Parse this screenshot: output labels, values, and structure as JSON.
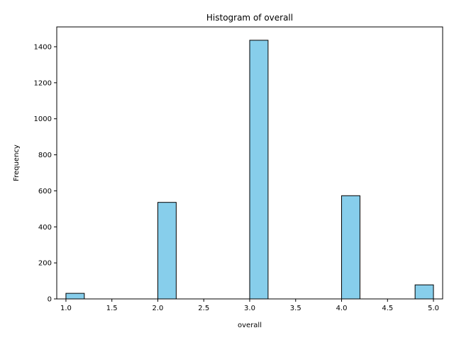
{
  "chart_data": {
    "type": "bar",
    "title": "Histogram of overall",
    "xlabel": "overall",
    "ylabel": "Frequency",
    "bin_width": 0.2,
    "bins": [
      {
        "start": 1.0,
        "end": 1.2,
        "count": 31
      },
      {
        "start": 1.2,
        "end": 1.4,
        "count": 0
      },
      {
        "start": 1.4,
        "end": 1.6,
        "count": 0
      },
      {
        "start": 1.6,
        "end": 1.8,
        "count": 0
      },
      {
        "start": 1.8,
        "end": 2.0,
        "count": 0
      },
      {
        "start": 2.0,
        "end": 2.2,
        "count": 536
      },
      {
        "start": 2.2,
        "end": 2.4,
        "count": 0
      },
      {
        "start": 2.4,
        "end": 2.6,
        "count": 0
      },
      {
        "start": 2.6,
        "end": 2.8,
        "count": 0
      },
      {
        "start": 2.8,
        "end": 3.0,
        "count": 0
      },
      {
        "start": 3.0,
        "end": 3.2,
        "count": 1436
      },
      {
        "start": 3.2,
        "end": 3.4,
        "count": 0
      },
      {
        "start": 3.4,
        "end": 3.6,
        "count": 0
      },
      {
        "start": 3.6,
        "end": 3.8,
        "count": 0
      },
      {
        "start": 3.8,
        "end": 4.0,
        "count": 0
      },
      {
        "start": 4.0,
        "end": 4.2,
        "count": 573
      },
      {
        "start": 4.2,
        "end": 4.4,
        "count": 0
      },
      {
        "start": 4.4,
        "end": 4.6,
        "count": 0
      },
      {
        "start": 4.6,
        "end": 4.8,
        "count": 0
      },
      {
        "start": 4.8,
        "end": 5.0,
        "count": 78
      }
    ],
    "xlim": [
      0.9,
      5.1
    ],
    "ylim": [
      0,
      1510
    ],
    "xticks": [
      "1.0",
      "1.5",
      "2.0",
      "2.5",
      "3.0",
      "3.5",
      "4.0",
      "4.5",
      "5.0"
    ],
    "yticks": [
      "0",
      "200",
      "400",
      "600",
      "800",
      "1000",
      "1200",
      "1400"
    ],
    "grid": false,
    "bar_color": "#87ceeb",
    "edge_color": "#000000"
  }
}
